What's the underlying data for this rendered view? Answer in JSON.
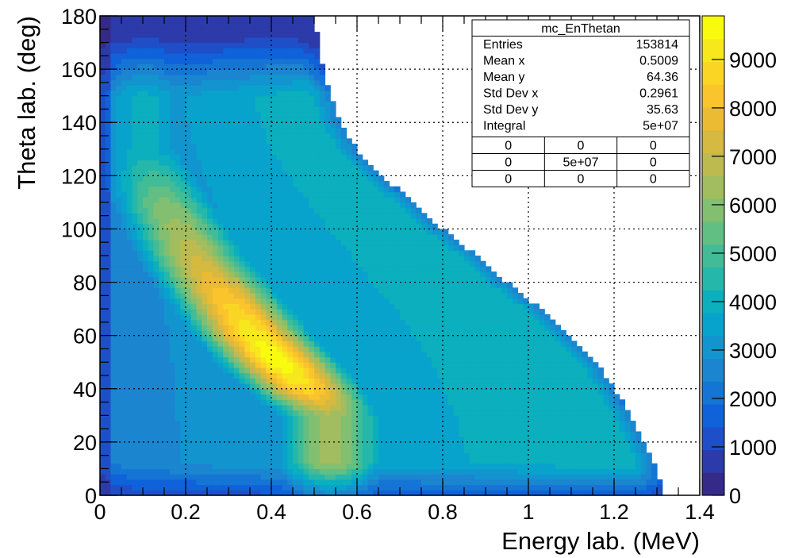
{
  "chart_data": {
    "type": "heatmap",
    "name": "mc_EnThetan",
    "xlabel": "Energy lab. (MeV)",
    "ylabel": "Theta lab. (deg)",
    "xlim": [
      0,
      1.4
    ],
    "ylim": [
      0,
      180
    ],
    "x_ticks": [
      "0",
      "0.2",
      "0.4",
      "0.6",
      "0.8",
      "1",
      "1.2",
      "1.4"
    ],
    "y_ticks": [
      "0",
      "20",
      "40",
      "60",
      "80",
      "100",
      "120",
      "140",
      "160",
      "180"
    ],
    "grid": true,
    "colorbar": {
      "range": [
        0,
        9900
      ],
      "ticks": [
        "0",
        "1000",
        "2000",
        "3000",
        "4000",
        "5000",
        "6000",
        "7000",
        "8000",
        "9000"
      ],
      "palette": [
        "#352a87",
        "#2c3ba9",
        "#1f4fc8",
        "#0f62d9",
        "#1575d4",
        "#1b85d0",
        "#1295cf",
        "#08a3cc",
        "#0bafbd",
        "#26b7ab",
        "#41bc97",
        "#62bf84",
        "#82bf70",
        "#a1bd5f",
        "#bdbb50",
        "#d5b940",
        "#ebbb33",
        "#fac42d",
        "#fbd524",
        "#f7e81d",
        "#f9fb0e"
      ]
    },
    "kinematic_boundary": {
      "theta": [
        180,
        170,
        160,
        150,
        140,
        130,
        120,
        110,
        100,
        90,
        80,
        70,
        60,
        50,
        40,
        30,
        20,
        10,
        5,
        0
      ],
      "energy": [
        0.5,
        0.51,
        0.52,
        0.54,
        0.56,
        0.6,
        0.66,
        0.73,
        0.8,
        0.88,
        0.95,
        1.03,
        1.1,
        1.16,
        1.2,
        1.24,
        1.27,
        1.3,
        1.31,
        1.31
      ]
    },
    "density_ridge": {
      "description": "band of maximum counts",
      "theta": [
        130,
        110,
        90,
        75,
        60,
        50,
        40,
        30
      ],
      "energy": [
        0.1,
        0.15,
        0.22,
        0.29,
        0.36,
        0.42,
        0.48,
        0.54
      ],
      "counts": [
        3500,
        5500,
        6800,
        8200,
        9300,
        9800,
        8700,
        6000
      ]
    },
    "stats": {
      "title": "mc_EnThetan",
      "rows": [
        {
          "label": "Entries",
          "value": "153814"
        },
        {
          "label": "Mean x",
          "value": "0.5009"
        },
        {
          "label": "Mean y",
          "value": "64.36"
        },
        {
          "label": "Std Dev x",
          "value": "0.2961"
        },
        {
          "label": "Std Dev y",
          "value": "35.63"
        },
        {
          "label": "Integral",
          "value": "5e+07"
        }
      ],
      "grid": [
        [
          "0",
          "0",
          "0"
        ],
        [
          "0",
          "5e+07",
          "0"
        ],
        [
          "0",
          "0",
          "0"
        ]
      ]
    }
  }
}
